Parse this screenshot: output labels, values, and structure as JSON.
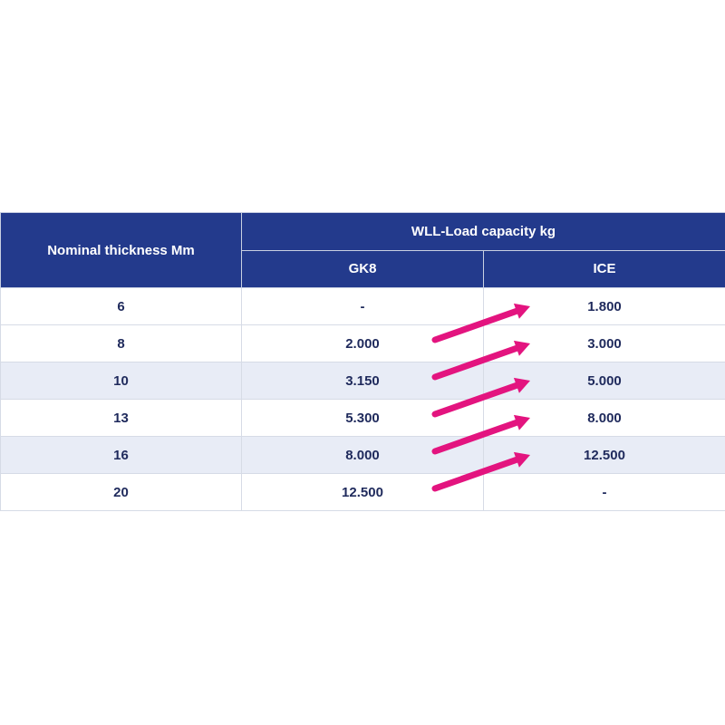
{
  "table": {
    "header_thickness": "Nominal thickness Mm",
    "header_group": "WLL-Load capacity kg",
    "sub_headers": [
      "GK8",
      "ICE"
    ],
    "rows": [
      [
        "6",
        "-",
        "1.800"
      ],
      [
        "8",
        "2.000",
        "3.000"
      ],
      [
        "10",
        "3.150",
        "5.000"
      ],
      [
        "13",
        "5.300",
        "8.000"
      ],
      [
        "16",
        "8.000",
        "12.500"
      ],
      [
        "20",
        "12.500",
        "-"
      ]
    ]
  },
  "arrow_color": "#e3147f",
  "arrows": [
    {
      "from_row": 1,
      "to_row": 0
    },
    {
      "from_row": 2,
      "to_row": 1
    },
    {
      "from_row": 3,
      "to_row": 2
    },
    {
      "from_row": 4,
      "to_row": 3
    },
    {
      "from_row": 5,
      "to_row": 4
    }
  ]
}
